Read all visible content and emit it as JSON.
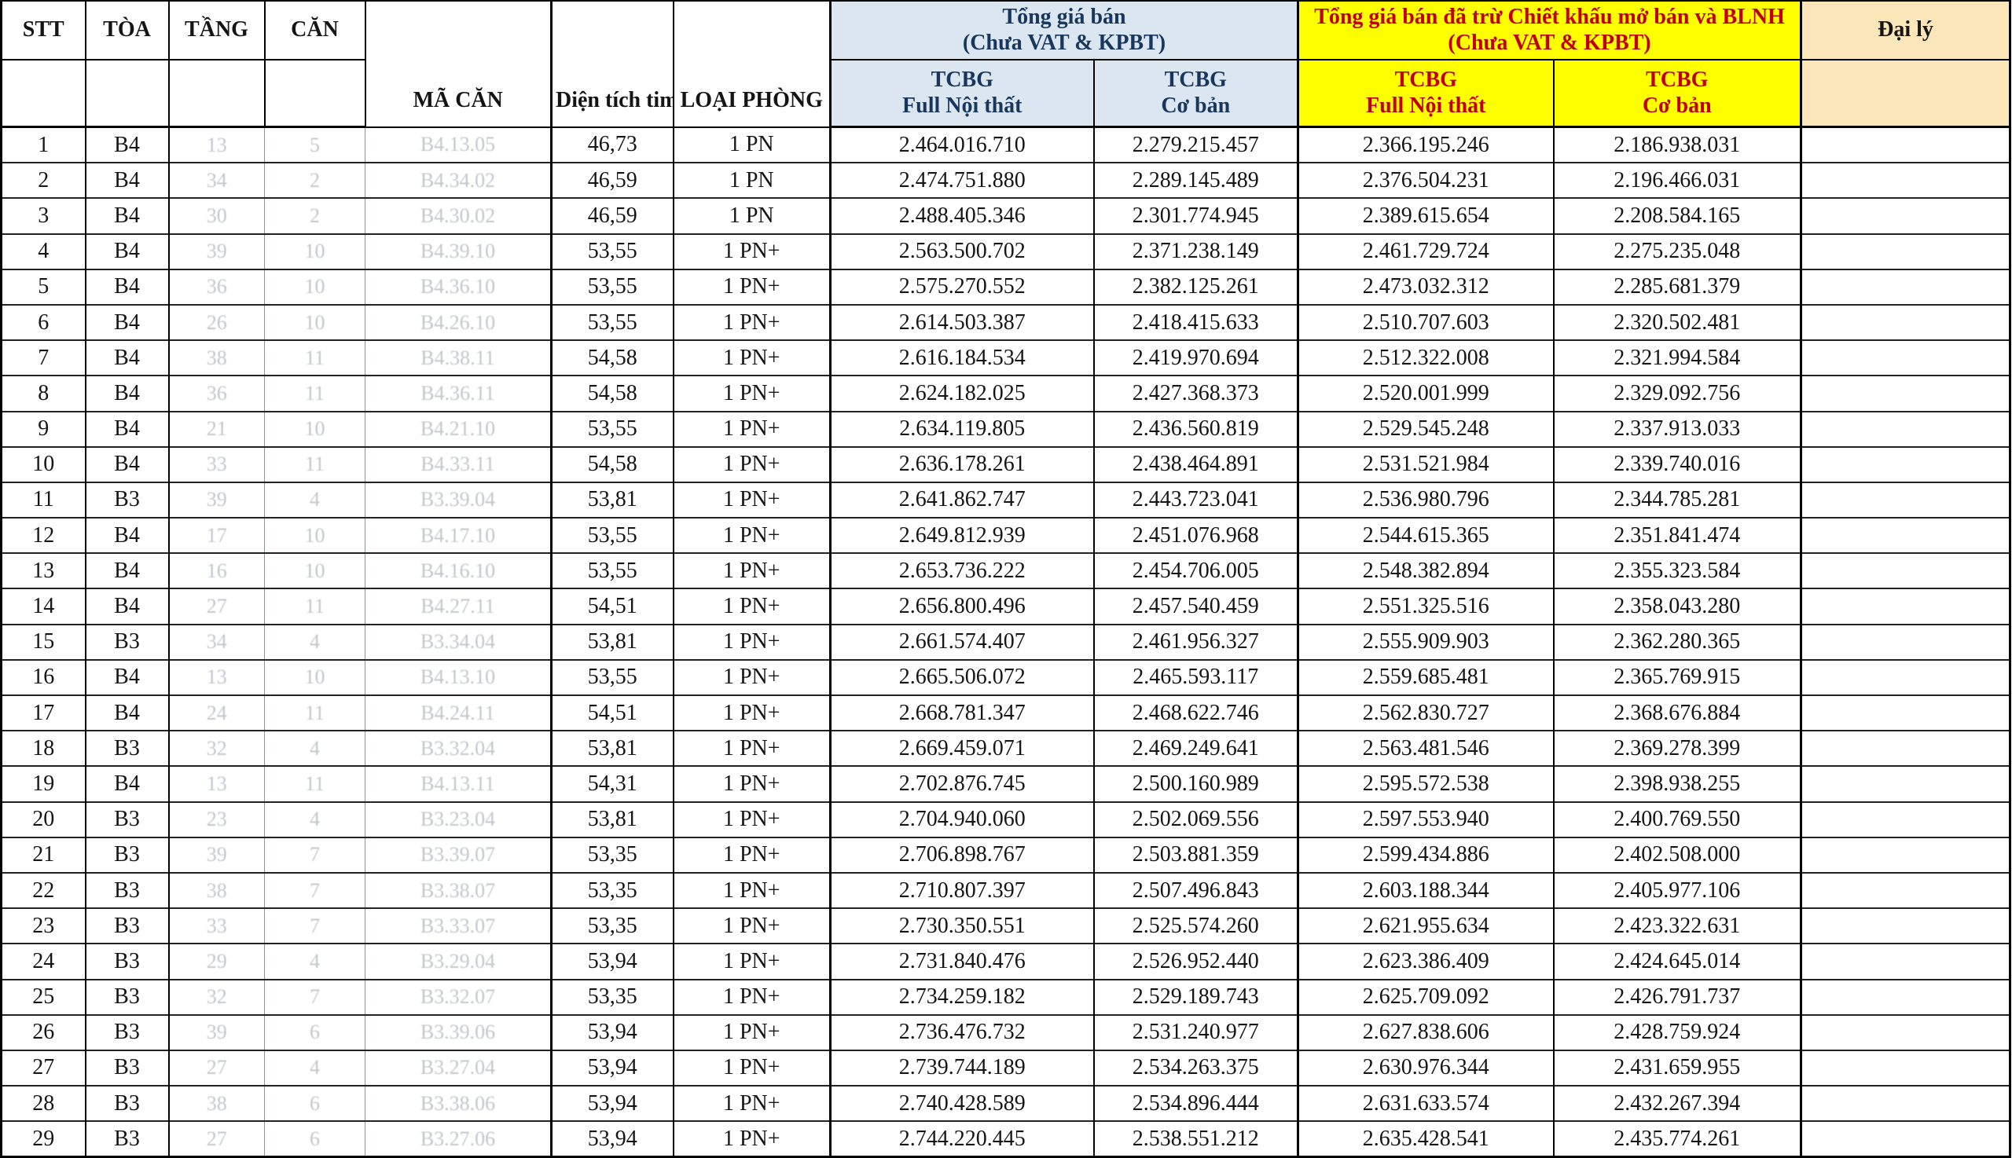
{
  "table": {
    "colors": {
      "header_blue_bg": "#DCE6F1",
      "header_blue_text": "#17375E",
      "header_yellow_bg": "#FFFF00",
      "header_yellow_text": "#C00000",
      "header_cream_bg": "#FAE6B8"
    },
    "headers": {
      "stt": "STT",
      "toa": "TÒA",
      "tang": "TẦNG",
      "can": "CĂN",
      "ma_can": "MÃ CĂN",
      "dien_tich": "Diện tích tim",
      "loai_phong": "LOẠI PHÒNG",
      "group_price": {
        "title_line1": "Tổng giá bán",
        "title_line2": "(Chưa VAT & KPBT)",
        "sub1_line1": "TCBG",
        "sub1_line2": "Full Nội thất",
        "sub2_line1": "TCBG",
        "sub2_line2": "Cơ bản"
      },
      "group_discount": {
        "title_line1": "Tổng giá bán đã trừ Chiết khấu mở bán và BLNH",
        "title_line2": "(Chưa VAT & KPBT)",
        "sub1_line1": "TCBG",
        "sub1_line2": "Full Nội thất",
        "sub2_line1": "TCBG",
        "sub2_line2": "Cơ bản"
      },
      "dai_ly": "Đại lý"
    },
    "column_keys": [
      "stt",
      "toa",
      "tang",
      "can",
      "ma-can",
      "dien-tich",
      "loai-phong",
      "tcbg-full-noi-that",
      "tcbg-co-ban",
      "ck-tcbg-full-noi-that",
      "ck-tcbg-co-ban",
      "dai-ly"
    ],
    "rows": [
      [
        "1",
        "B4",
        "13",
        "5",
        "B4.13.05",
        "46,73",
        "1 PN",
        "2.464.016.710",
        "2.279.215.457",
        "2.366.195.246",
        "2.186.938.031",
        ""
      ],
      [
        "2",
        "B4",
        "34",
        "2",
        "B4.34.02",
        "46,59",
        "1 PN",
        "2.474.751.880",
        "2.289.145.489",
        "2.376.504.231",
        "2.196.466.031",
        ""
      ],
      [
        "3",
        "B4",
        "30",
        "2",
        "B4.30.02",
        "46,59",
        "1 PN",
        "2.488.405.346",
        "2.301.774.945",
        "2.389.615.654",
        "2.208.584.165",
        ""
      ],
      [
        "4",
        "B4",
        "39",
        "10",
        "B4.39.10",
        "53,55",
        "1 PN+",
        "2.563.500.702",
        "2.371.238.149",
        "2.461.729.724",
        "2.275.235.048",
        ""
      ],
      [
        "5",
        "B4",
        "36",
        "10",
        "B4.36.10",
        "53,55",
        "1 PN+",
        "2.575.270.552",
        "2.382.125.261",
        "2.473.032.312",
        "2.285.681.379",
        ""
      ],
      [
        "6",
        "B4",
        "26",
        "10",
        "B4.26.10",
        "53,55",
        "1 PN+",
        "2.614.503.387",
        "2.418.415.633",
        "2.510.707.603",
        "2.320.502.481",
        ""
      ],
      [
        "7",
        "B4",
        "38",
        "11",
        "B4.38.11",
        "54,58",
        "1 PN+",
        "2.616.184.534",
        "2.419.970.694",
        "2.512.322.008",
        "2.321.994.584",
        ""
      ],
      [
        "8",
        "B4",
        "36",
        "11",
        "B4.36.11",
        "54,58",
        "1 PN+",
        "2.624.182.025",
        "2.427.368.373",
        "2.520.001.999",
        "2.329.092.756",
        ""
      ],
      [
        "9",
        "B4",
        "21",
        "10",
        "B4.21.10",
        "53,55",
        "1 PN+",
        "2.634.119.805",
        "2.436.560.819",
        "2.529.545.248",
        "2.337.913.033",
        ""
      ],
      [
        "10",
        "B4",
        "33",
        "11",
        "B4.33.11",
        "54,58",
        "1 PN+",
        "2.636.178.261",
        "2.438.464.891",
        "2.531.521.984",
        "2.339.740.016",
        ""
      ],
      [
        "11",
        "B3",
        "39",
        "4",
        "B3.39.04",
        "53,81",
        "1 PN+",
        "2.641.862.747",
        "2.443.723.041",
        "2.536.980.796",
        "2.344.785.281",
        ""
      ],
      [
        "12",
        "B4",
        "17",
        "10",
        "B4.17.10",
        "53,55",
        "1 PN+",
        "2.649.812.939",
        "2.451.076.968",
        "2.544.615.365",
        "2.351.841.474",
        ""
      ],
      [
        "13",
        "B4",
        "16",
        "10",
        "B4.16.10",
        "53,55",
        "1 PN+",
        "2.653.736.222",
        "2.454.706.005",
        "2.548.382.894",
        "2.355.323.584",
        ""
      ],
      [
        "14",
        "B4",
        "27",
        "11",
        "B4.27.11",
        "54,51",
        "1 PN+",
        "2.656.800.496",
        "2.457.540.459",
        "2.551.325.516",
        "2.358.043.280",
        ""
      ],
      [
        "15",
        "B3",
        "34",
        "4",
        "B3.34.04",
        "53,81",
        "1 PN+",
        "2.661.574.407",
        "2.461.956.327",
        "2.555.909.903",
        "2.362.280.365",
        ""
      ],
      [
        "16",
        "B4",
        "13",
        "10",
        "B4.13.10",
        "53,55",
        "1 PN+",
        "2.665.506.072",
        "2.465.593.117",
        "2.559.685.481",
        "2.365.769.915",
        ""
      ],
      [
        "17",
        "B4",
        "24",
        "11",
        "B4.24.11",
        "54,51",
        "1 PN+",
        "2.668.781.347",
        "2.468.622.746",
        "2.562.830.727",
        "2.368.676.884",
        ""
      ],
      [
        "18",
        "B3",
        "32",
        "4",
        "B3.32.04",
        "53,81",
        "1 PN+",
        "2.669.459.071",
        "2.469.249.641",
        "2.563.481.546",
        "2.369.278.399",
        ""
      ],
      [
        "19",
        "B4",
        "13",
        "11",
        "B4.13.11",
        "54,31",
        "1 PN+",
        "2.702.876.745",
        "2.500.160.989",
        "2.595.572.538",
        "2.398.938.255",
        ""
      ],
      [
        "20",
        "B3",
        "23",
        "4",
        "B3.23.04",
        "53,81",
        "1 PN+",
        "2.704.940.060",
        "2.502.069.556",
        "2.597.553.940",
        "2.400.769.550",
        ""
      ],
      [
        "21",
        "B3",
        "39",
        "7",
        "B3.39.07",
        "53,35",
        "1 PN+",
        "2.706.898.767",
        "2.503.881.359",
        "2.599.434.886",
        "2.402.508.000",
        ""
      ],
      [
        "22",
        "B3",
        "38",
        "7",
        "B3.38.07",
        "53,35",
        "1 PN+",
        "2.710.807.397",
        "2.507.496.843",
        "2.603.188.344",
        "2.405.977.106",
        ""
      ],
      [
        "23",
        "B3",
        "33",
        "7",
        "B3.33.07",
        "53,35",
        "1 PN+",
        "2.730.350.551",
        "2.525.574.260",
        "2.621.955.634",
        "2.423.322.631",
        ""
      ],
      [
        "24",
        "B3",
        "29",
        "4",
        "B3.29.04",
        "53,94",
        "1 PN+",
        "2.731.840.476",
        "2.526.952.440",
        "2.623.386.409",
        "2.424.645.014",
        ""
      ],
      [
        "25",
        "B3",
        "32",
        "7",
        "B3.32.07",
        "53,35",
        "1 PN+",
        "2.734.259.182",
        "2.529.189.743",
        "2.625.709.092",
        "2.426.791.737",
        ""
      ],
      [
        "26",
        "B3",
        "39",
        "6",
        "B3.39.06",
        "53,94",
        "1 PN+",
        "2.736.476.732",
        "2.531.240.977",
        "2.627.838.606",
        "2.428.759.924",
        ""
      ],
      [
        "27",
        "B3",
        "27",
        "4",
        "B3.27.04",
        "53,94",
        "1 PN+",
        "2.739.744.189",
        "2.534.263.375",
        "2.630.976.344",
        "2.431.659.955",
        ""
      ],
      [
        "28",
        "B3",
        "38",
        "6",
        "B3.38.06",
        "53,94",
        "1 PN+",
        "2.740.428.589",
        "2.534.896.444",
        "2.631.633.574",
        "2.432.267.394",
        ""
      ],
      [
        "29",
        "B3",
        "27",
        "6",
        "B3.27.06",
        "53,94",
        "1 PN+",
        "2.744.220.445",
        "2.538.551.212",
        "2.635.428.541",
        "2.435.774.261",
        ""
      ]
    ]
  }
}
